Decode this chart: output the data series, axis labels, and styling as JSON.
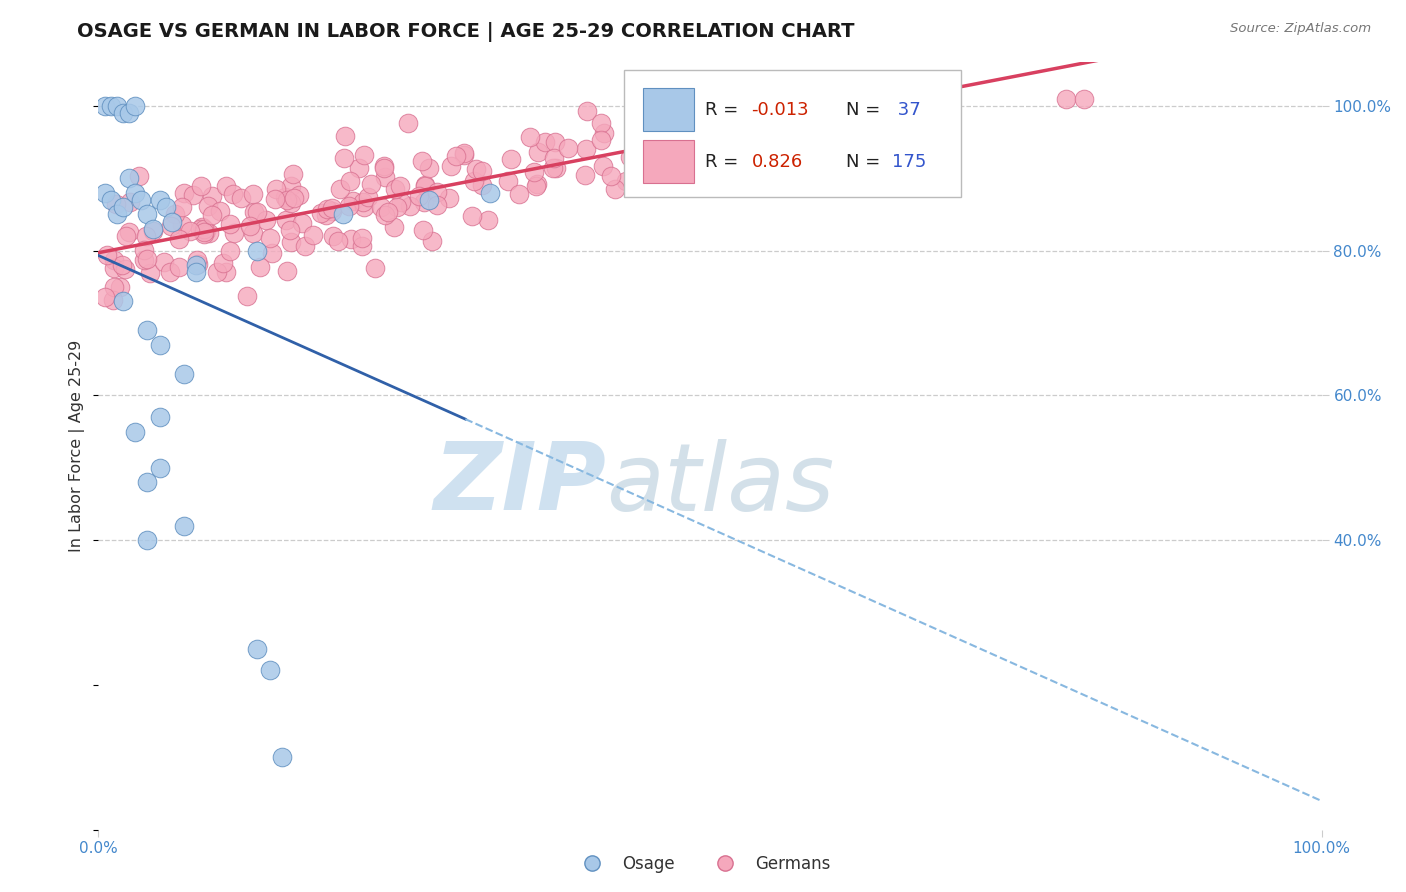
{
  "title": "OSAGE VS GERMAN IN LABOR FORCE | AGE 25-29 CORRELATION CHART",
  "source_text": "Source: ZipAtlas.com",
  "ylabel": "In Labor Force | Age 25-29",
  "xlim": [
    0.0,
    1.0
  ],
  "ylim": [
    0.0,
    1.06
  ],
  "R_osage": -0.013,
  "N_osage": 37,
  "R_german": 0.826,
  "N_german": 175,
  "osage_face": "#a8c8e8",
  "osage_edge": "#6090c0",
  "german_face": "#f5a8bc",
  "german_edge": "#d87090",
  "trend_blue_solid": "#3060a8",
  "trend_blue_dash": "#88b8e0",
  "trend_pink": "#d84060",
  "grid_color": "#cccccc",
  "background": "#ffffff",
  "title_color": "#1a1a1a",
  "source_color": "#777777",
  "axis_label_color": "#4488cc",
  "title_fontsize": 14,
  "marker_size": 180,
  "legend_R_color": "#cc2200",
  "legend_N_color": "#3355cc",
  "watermark_zip_color": "#c0d8ec",
  "watermark_atlas_color": "#b0c8d8"
}
